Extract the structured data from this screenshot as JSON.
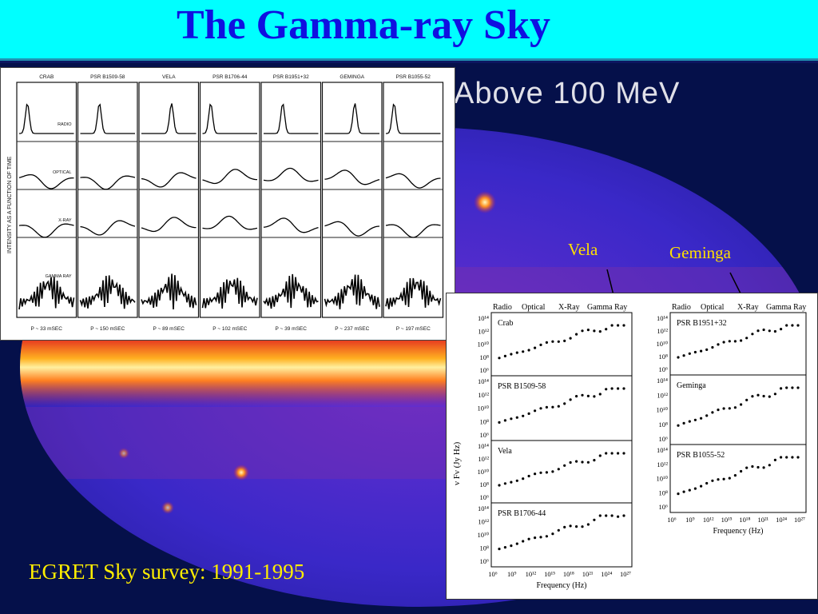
{
  "slide": {
    "title": "The Gamma-ray Sky",
    "caption": "EGRET Sky survey: 1991-1995"
  },
  "sky_map": {
    "label": "Above 100 MeV",
    "sources": [
      "Vela",
      "Geminga"
    ]
  },
  "light_curves": {
    "y_axis_label": "INTENSITY AS A FUNCTION OF TIME",
    "bands": [
      "RADIO",
      "OPTICAL",
      "X-RAY",
      "GAMMA RAY"
    ],
    "pulsars": [
      {
        "name": "CRAB",
        "period": "P ~ 33 mSEC"
      },
      {
        "name": "PSR B1509-58",
        "period": "P ~ 150 mSEC"
      },
      {
        "name": "VELA",
        "period": "P ~ 89 mSEC"
      },
      {
        "name": "PSR B1706-44",
        "period": "P ~ 102 mSEC"
      },
      {
        "name": "PSR B1951+32",
        "period": "P ~ 39 mSEC"
      },
      {
        "name": "GEMINGA",
        "period": "P ~ 237 mSEC"
      },
      {
        "name": "PSR B1055-52",
        "period": "P ~ 197 mSEC"
      }
    ]
  },
  "spectra": {
    "band_headers": [
      "Radio",
      "Optical",
      "X-Ray",
      "Gamma Ray"
    ],
    "y_axis_label": "ν Fν  (Jy Hz)",
    "x_axis_label": "Frequency (Hz)",
    "x_ticks": [
      "10⁶",
      "10⁹",
      "10¹²",
      "10¹⁵",
      "10¹⁸",
      "10²¹",
      "10²⁴",
      "10²⁷"
    ],
    "y_ticks": [
      "10¹⁴",
      "10¹²",
      "10¹⁰",
      "10⁸",
      "10⁶"
    ],
    "left_panels": [
      "Crab",
      "PSR B1509-58",
      "Vela",
      "PSR B1706-44"
    ],
    "right_panels": [
      "PSR B1951+32",
      "Geminga",
      "PSR B1055-52"
    ]
  }
}
